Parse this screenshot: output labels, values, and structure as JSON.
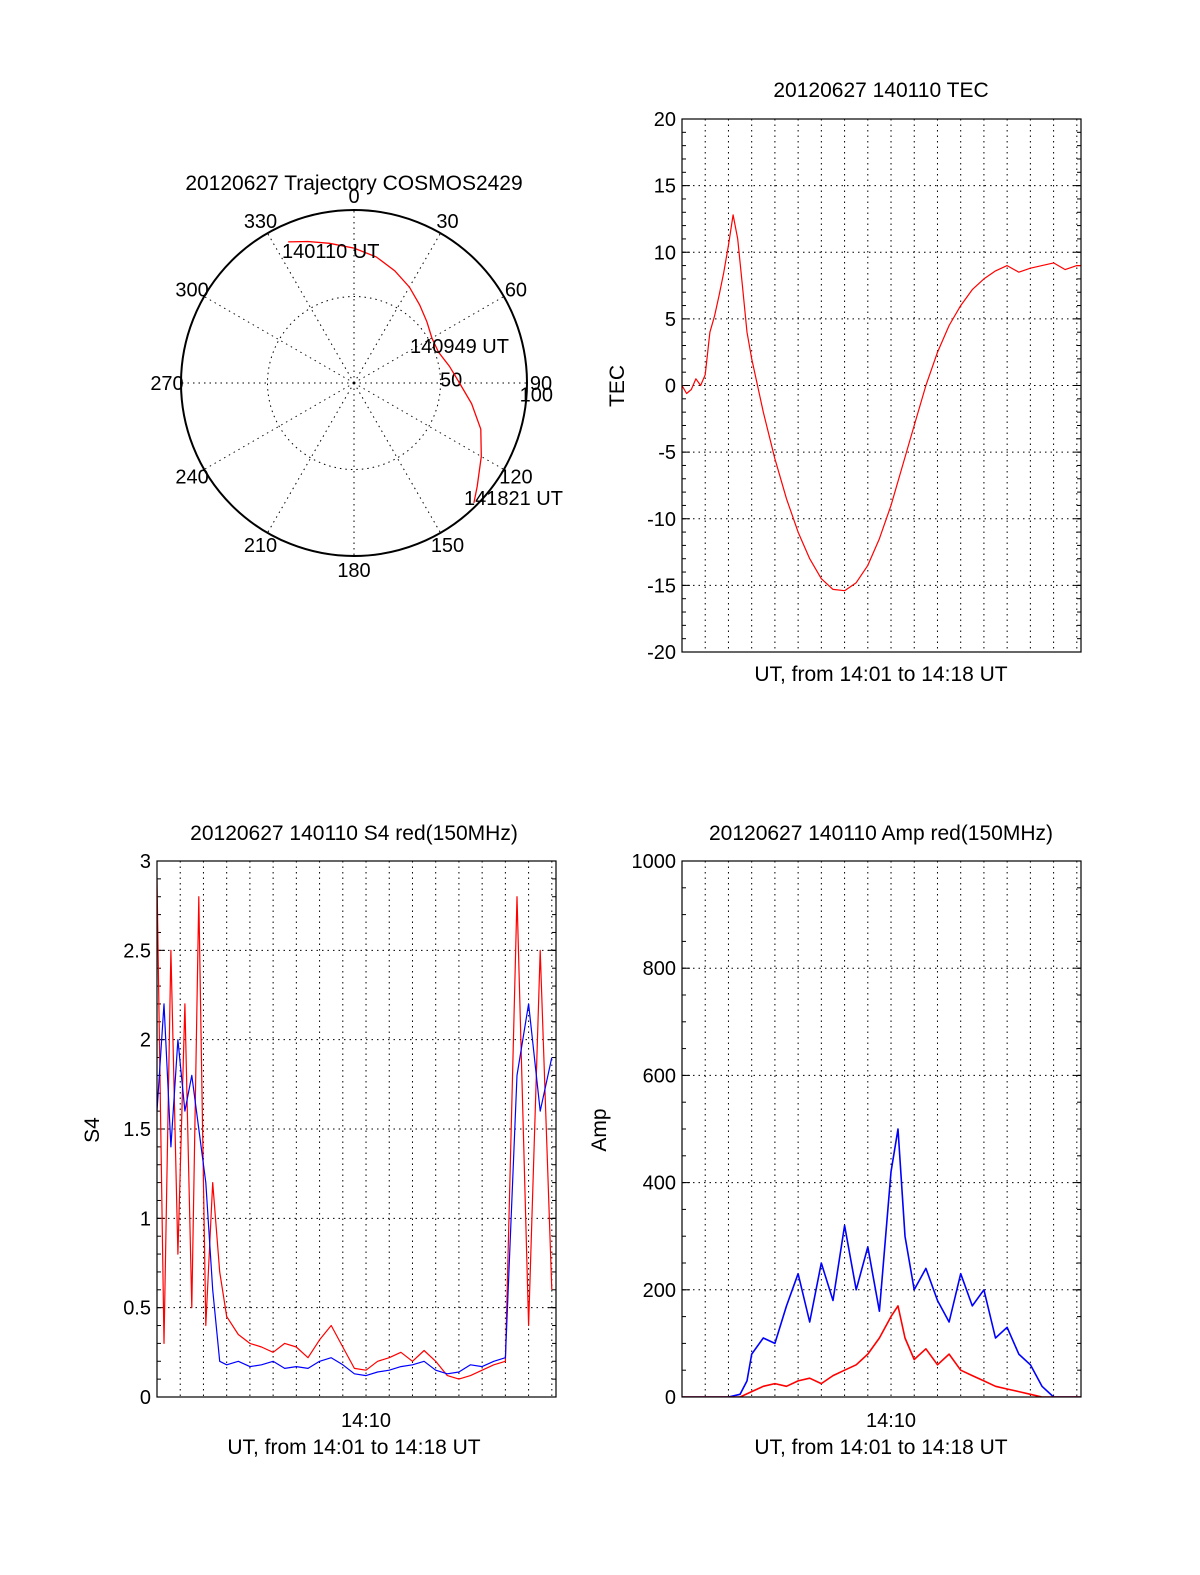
{
  "chart_data": [
    {
      "type": "scatter",
      "subtype": "polar",
      "title": "20120627 Trajectory COSMOS2429",
      "angle_labels": [
        "0",
        "30",
        "60",
        "90",
        "120",
        "150",
        "180",
        "210",
        "240",
        "270",
        "300",
        "330"
      ],
      "radius_labels": [
        "50",
        "100"
      ],
      "point_labels": [
        "140110 UT",
        "140949 UT",
        "141821 UT"
      ],
      "series": [
        {
          "color": "#ff0000",
          "azimuth": [
            335,
            342,
            350,
            0,
            10,
            20,
            30,
            40,
            50,
            60,
            70,
            80,
            90,
            100,
            110,
            120,
            130,
            135
          ],
          "radius": [
            90,
            86,
            82,
            78,
            74,
            69,
            64,
            59,
            55,
            52,
            52,
            56,
            61,
            69,
            78,
            85,
            93,
            98
          ]
        }
      ]
    },
    {
      "type": "line",
      "title": "20120627 140110 TEC",
      "xlabel": "UT, from 14:01 to 14:18 UT",
      "ylabel": "TEC",
      "xlim": [
        0,
        17.18
      ],
      "ylim": [
        -20,
        20
      ],
      "yticks": [
        "20",
        "15",
        "10",
        "5",
        "0",
        "-5",
        "-10",
        "-15",
        "-20"
      ],
      "grid": true,
      "series": [
        {
          "color": "#ff0000",
          "x": [
            0,
            0.2,
            0.4,
            0.6,
            0.8,
            1.0,
            1.2,
            1.4,
            1.6,
            1.8,
            2.0,
            2.2,
            2.4,
            2.6,
            2.8,
            3.0,
            3.5,
            4.0,
            4.5,
            5.0,
            5.5,
            6.0,
            6.5,
            7.0,
            7.5,
            8.0,
            8.5,
            9.0,
            9.5,
            10.0,
            10.5,
            11.0,
            11.5,
            12.0,
            12.5,
            13.0,
            13.5,
            14.0,
            14.5,
            15.0,
            15.5,
            16.0,
            16.5,
            17.0,
            17.18
          ],
          "y": [
            0.0,
            -0.6,
            -0.3,
            0.5,
            0.0,
            0.8,
            4.0,
            5.2,
            6.8,
            8.5,
            10.5,
            12.8,
            11.0,
            7.5,
            4.0,
            2.0,
            -2.0,
            -5.5,
            -8.5,
            -11.0,
            -13.0,
            -14.5,
            -15.3,
            -15.4,
            -14.8,
            -13.5,
            -11.5,
            -9.0,
            -6.0,
            -3.0,
            0.0,
            2.5,
            4.5,
            6.0,
            7.2,
            8.0,
            8.6,
            9.0,
            8.5,
            8.8,
            9.0,
            9.2,
            8.7,
            9.0,
            9.0
          ]
        }
      ]
    },
    {
      "type": "line",
      "title": "20120627 140110 S4 red(150MHz)",
      "xlabel": "UT, from 14:01 to 14:18 UT",
      "ylabel": "S4",
      "xlim": [
        0,
        17.18
      ],
      "xticks": [
        "14:10"
      ],
      "ylim": [
        0,
        3
      ],
      "yticks": [
        "3",
        "2.5",
        "2",
        "1.5",
        "1",
        "0.5",
        "0"
      ],
      "grid": true,
      "series": [
        {
          "color": "#ff0000",
          "x": [
            0,
            0.3,
            0.6,
            0.9,
            1.2,
            1.5,
            1.8,
            2.1,
            2.4,
            2.7,
            3.0,
            3.5,
            4.0,
            4.5,
            5.0,
            5.5,
            6.0,
            6.5,
            7.0,
            7.5,
            8.0,
            8.5,
            9.0,
            9.5,
            10.0,
            10.5,
            11.0,
            11.5,
            12.0,
            12.5,
            13.0,
            13.5,
            14.0,
            14.5,
            15.0,
            15.5,
            16.0,
            16.5,
            17.0
          ],
          "y": [
            2.9,
            0.3,
            2.5,
            0.8,
            2.2,
            0.5,
            2.8,
            0.4,
            1.2,
            0.7,
            0.45,
            0.35,
            0.3,
            0.28,
            0.25,
            0.3,
            0.28,
            0.22,
            0.32,
            0.4,
            0.28,
            0.16,
            0.15,
            0.2,
            0.22,
            0.25,
            0.2,
            0.26,
            0.2,
            0.12,
            0.1,
            0.12,
            0.15,
            0.18,
            0.2,
            2.8,
            0.4,
            2.5,
            0.6
          ]
        },
        {
          "color": "#0000ff",
          "x": [
            0,
            0.3,
            0.6,
            0.9,
            1.2,
            1.5,
            1.8,
            2.1,
            2.4,
            2.7,
            3.0,
            3.5,
            4.0,
            4.5,
            5.0,
            5.5,
            6.0,
            6.5,
            7.0,
            7.5,
            8.0,
            8.5,
            9.0,
            9.5,
            10.0,
            10.5,
            11.0,
            11.5,
            12.0,
            12.5,
            13.0,
            13.5,
            14.0,
            14.5,
            15.0,
            15.5,
            16.0,
            16.5,
            17.0
          ],
          "y": [
            1.6,
            2.2,
            1.4,
            2.0,
            1.6,
            1.8,
            1.5,
            1.2,
            0.6,
            0.2,
            0.18,
            0.2,
            0.17,
            0.18,
            0.2,
            0.16,
            0.17,
            0.16,
            0.2,
            0.22,
            0.18,
            0.13,
            0.12,
            0.14,
            0.15,
            0.17,
            0.18,
            0.2,
            0.15,
            0.13,
            0.14,
            0.18,
            0.17,
            0.2,
            0.22,
            1.8,
            2.2,
            1.6,
            1.9
          ]
        }
      ]
    },
    {
      "type": "line",
      "title": "20120627 140110 Amp red(150MHz)",
      "xlabel": "UT, from 14:01 to 14:18 UT",
      "ylabel": "Amp",
      "xlim": [
        0,
        17.18
      ],
      "xticks": [
        "14:10"
      ],
      "ylim": [
        0,
        1000
      ],
      "yticks": [
        "1000",
        "800",
        "600",
        "400",
        "200",
        "0"
      ],
      "grid": true,
      "series": [
        {
          "color": "#0000ff",
          "x": [
            0,
            2.0,
            2.5,
            2.8,
            3.0,
            3.5,
            4.0,
            4.5,
            5.0,
            5.5,
            6.0,
            6.5,
            7.0,
            7.5,
            8.0,
            8.5,
            9.0,
            9.3,
            9.6,
            10.0,
            10.5,
            11.0,
            11.5,
            12.0,
            12.5,
            13.0,
            13.5,
            14.0,
            14.5,
            15.0,
            15.5,
            16.0,
            16.5,
            17.18
          ],
          "y": [
            0,
            0,
            5,
            30,
            80,
            110,
            100,
            170,
            230,
            140,
            250,
            180,
            320,
            200,
            280,
            160,
            420,
            500,
            300,
            200,
            240,
            180,
            140,
            230,
            170,
            200,
            110,
            130,
            80,
            60,
            20,
            0,
            0,
            0
          ]
        },
        {
          "color": "#ff0000",
          "x": [
            0,
            2.5,
            3.0,
            3.5,
            4.0,
            4.5,
            5.0,
            5.5,
            6.0,
            6.5,
            7.0,
            7.5,
            8.0,
            8.5,
            9.0,
            9.3,
            9.6,
            10.0,
            10.5,
            11.0,
            11.5,
            12.0,
            12.5,
            13.0,
            13.5,
            14.0,
            14.5,
            15.0,
            15.5,
            16.0,
            17.18
          ],
          "y": [
            0,
            0,
            10,
            20,
            25,
            20,
            30,
            35,
            25,
            40,
            50,
            60,
            80,
            110,
            150,
            170,
            110,
            70,
            90,
            60,
            80,
            50,
            40,
            30,
            20,
            15,
            10,
            5,
            0,
            0,
            0
          ]
        }
      ]
    }
  ]
}
